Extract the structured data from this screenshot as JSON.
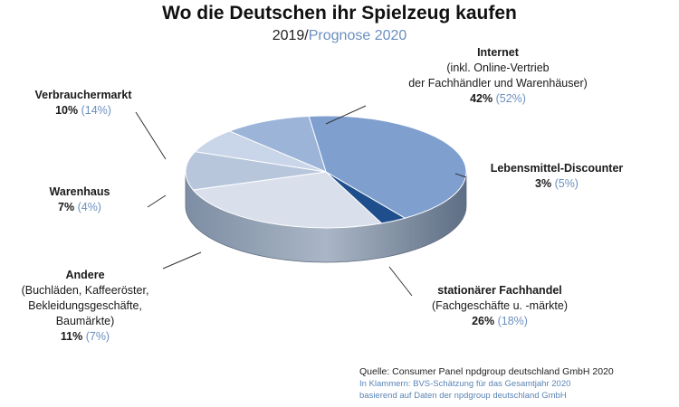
{
  "title": "Wo die Deutschen ihr Spielzeug kaufen",
  "subtitle": {
    "year": "2019/",
    "forecast": "Prognose 2020"
  },
  "chart_data": {
    "type": "pie",
    "series": [
      {
        "name": "2019",
        "values": [
          42,
          3,
          26,
          11,
          7,
          10
        ]
      },
      {
        "name": "Prognose 2020",
        "values": [
          52,
          5,
          18,
          7,
          4,
          14
        ]
      }
    ],
    "categories": [
      "Internet",
      "Lebensmittel-Discounter",
      "stationärer Fachhandel",
      "Andere",
      "Warenhaus",
      "Verbrauchermarkt"
    ],
    "colors": [
      "#7f9fcf",
      "#1f4e8c",
      "#d9e0ec",
      "#b8c6dc",
      "#c9d5e8",
      "#9bb4d8"
    ]
  },
  "labels": {
    "internet": {
      "name": "Internet",
      "sub1": "(inkl. Online-Vertrieb",
      "sub2": "der Fachhändler und Warenhäuser)",
      "pct": "42%",
      "fc": "(52%)"
    },
    "lebensmittel": {
      "name": "Lebensmittel-Discounter",
      "pct": "3%",
      "fc": "(5%)"
    },
    "fachhandel": {
      "name": "stationärer Fachhandel",
      "sub1": "(Fachgeschäfte u. -märkte)",
      "pct": "26%",
      "fc": "(18%)"
    },
    "andere": {
      "name": "Andere",
      "sub1": "(Buchläden, Kaffeeröster,",
      "sub2": "Bekleidungsgeschäfte,",
      "sub3": "Baumärkte)",
      "pct": "11%",
      "fc": "(7%)"
    },
    "warenhaus": {
      "name": "Warenhaus",
      "pct": "7%",
      "fc": "(4%)"
    },
    "verbraucher": {
      "name": "Verbrauchermarkt",
      "pct": "10%",
      "fc": "(14%)"
    }
  },
  "source": {
    "line1": "Quelle: Consumer Panel npdgroup deutschland GmbH 2020",
    "line2": "In Klammern: BVS-Schätzung für das Gesamtjahr 2020",
    "line3": "basierend auf Daten der npdgroup deutschland GmbH"
  }
}
